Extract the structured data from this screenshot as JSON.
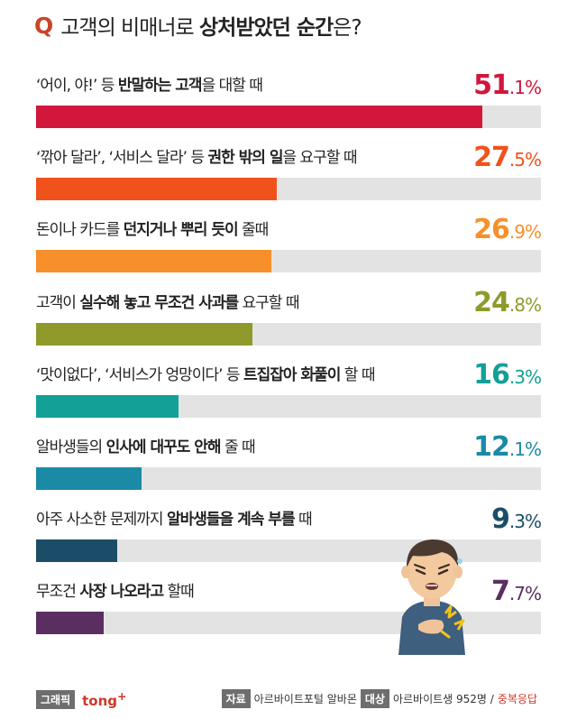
{
  "title": {
    "q": "Q",
    "pre": "고객의 비매너로 ",
    "bold": "상처받았던 순간",
    "post": "은?"
  },
  "colors": [
    "#d2163c",
    "#f0521b",
    "#f7902a",
    "#8f9a2a",
    "#12a097",
    "#1a8aa6",
    "#1c4d68",
    "#5b2e62"
  ],
  "chart_data": {
    "type": "bar",
    "orientation": "horizontal",
    "unit": "%",
    "xlim": [
      0,
      100
    ],
    "categories": [
      "‘어이, 야!’ 등 반말하는 고객을 대할 때",
      "‘깎아 달라’, ‘서비스 달라’ 등 권한 밖의 일을 요구할 때",
      "돈이나 카드를 던지거나 뿌리 듯이 줄때",
      "고객이 실수해 놓고 무조건 사과를 요구할 때",
      "‘맛이없다’, ‘서비스가 엉망이다’ 등 트집잡아 화풀이 할 때",
      "알바생들의 인사에 대꾸도 안해 줄 때",
      "아주 사소한 문제까지 알바생들을 계속 부를 때",
      "무조건 사장 나오라고 할때"
    ],
    "values": [
      51.1,
      27.5,
      26.9,
      24.8,
      16.3,
      12.1,
      9.3,
      7.7
    ],
    "label_parts": [
      [
        "‘어이, 야!’ 등 ",
        "반말하는 고객",
        "을 대할 때"
      ],
      [
        "‘깎아 달라’, ‘서비스 달라’ 등 ",
        "권한 밖의 일",
        "을 요구할 때"
      ],
      [
        "돈이나 카드를 ",
        "던지거나 뿌리 듯이",
        " 줄때"
      ],
      [
        "고객이 ",
        "실수해 놓고 무조건 사과를",
        " 요구할 때"
      ],
      [
        "‘맛이없다’, ‘서비스가 엉망이다’ 등 ",
        "트집잡아 화풀이",
        " 할 때"
      ],
      [
        "알바생들의 ",
        "인사에 대꾸도 안해",
        " 줄 때"
      ],
      [
        "아주 사소한 문제까지 ",
        "알바생들을 계속 부를",
        " 때"
      ],
      [
        "무조건 ",
        "사장 나오라고",
        " 할때"
      ]
    ],
    "value_labels": [
      [
        "51",
        ".1%"
      ],
      [
        "27",
        ".5%"
      ],
      [
        "26",
        ".9%"
      ],
      [
        "24",
        ".8%"
      ],
      [
        "16",
        ".3%"
      ],
      [
        "12",
        ".1%"
      ],
      [
        "9",
        ".3%"
      ],
      [
        "7",
        ".7%"
      ]
    ]
  },
  "footer": {
    "graphic_tag": "그래픽",
    "brand": "tong",
    "brand_sup": "+",
    "source_tag": "자료",
    "source": "아르바이트포털 알바몬",
    "target_tag": "대상",
    "target": "아르바이트생 952명 /",
    "target_note": "중복응답"
  }
}
